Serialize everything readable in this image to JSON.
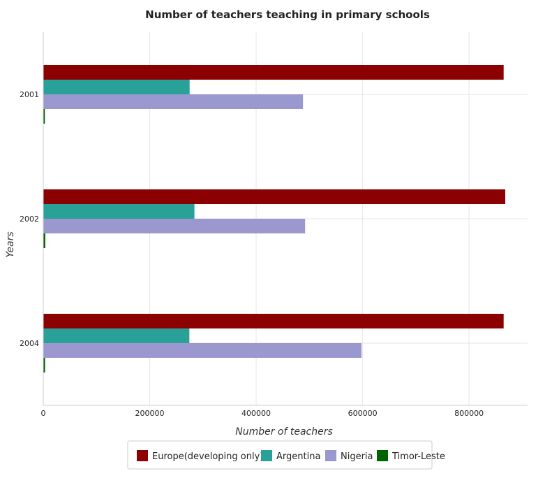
{
  "chart_data": {
    "type": "bar",
    "orientation": "horizontal",
    "title": "Number of teachers teaching in primary schools",
    "xlabel": "Number of teachers",
    "ylabel": "Years",
    "categories": [
      "2001",
      "2002",
      "2004"
    ],
    "x_ticks": [
      0,
      200000,
      400000,
      600000,
      800000
    ],
    "x_tick_labels": [
      "0",
      "200000",
      "400000",
      "600000",
      "800000"
    ],
    "xlim": [
      0,
      910000
    ],
    "grid": true,
    "legend_position": "bottom",
    "series": [
      {
        "name": "Europe(developing only)",
        "color": "#8b0000",
        "values": [
          865000,
          868000,
          865000
        ]
      },
      {
        "name": "Argentina",
        "color": "#2aa198",
        "values": [
          275000,
          284000,
          274500
        ]
      },
      {
        "name": "Nigeria",
        "color": "#9b97cf",
        "values": [
          488000,
          492000,
          598000
        ]
      },
      {
        "name": "Timor-Leste",
        "color": "#006400",
        "values": [
          3000,
          3800,
          3400
        ]
      }
    ]
  }
}
